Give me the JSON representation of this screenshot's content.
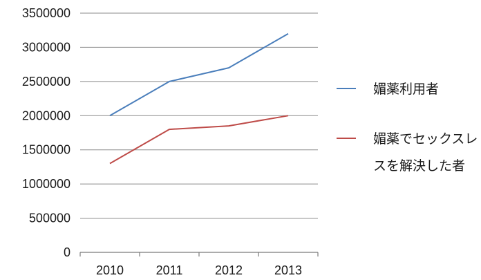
{
  "chart_data": {
    "type": "line",
    "title": "",
    "xlabel": "",
    "ylabel": "",
    "categories": [
      "2010",
      "2011",
      "2012",
      "2013"
    ],
    "ylim": [
      0,
      3500000
    ],
    "y_ticks": [
      "0",
      "500000",
      "1000000",
      "1500000",
      "2000000",
      "2500000",
      "3000000",
      "3500000"
    ],
    "grid": true,
    "legend_position": "right",
    "series": [
      {
        "name": "媚薬利用者",
        "name_lines": [
          "媚薬利用者"
        ],
        "color": "#4a7ebb",
        "values": [
          2000000,
          2500000,
          2700000,
          3200000
        ]
      },
      {
        "name": "媚薬でセックスレスを解決した者",
        "name_lines": [
          "媚薬でセックスレ",
          "スを解決した者"
        ],
        "color": "#be4b48",
        "values": [
          1300000,
          1800000,
          1850000,
          2000000
        ]
      }
    ]
  }
}
